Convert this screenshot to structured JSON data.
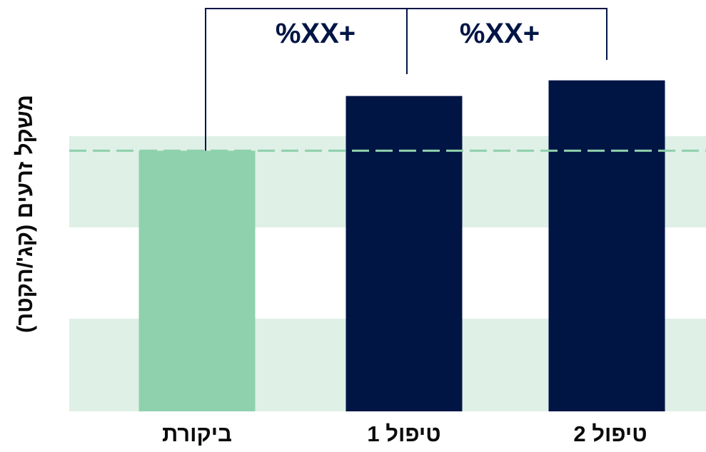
{
  "colors": {
    "background": "#ffffff",
    "band": "#dff0e7",
    "control_bar": "#8fd1ad",
    "treatment_bar": "#011545",
    "reference_line": "#8fd1ad",
    "bracket": "#011545",
    "text": "#0a0a0a",
    "annotation_text": "#011545"
  },
  "chart_data": {
    "type": "bar",
    "categories": [
      "ביקורת",
      "טיפול 1",
      "טיפול 2"
    ],
    "values": [
      100,
      121,
      127
    ],
    "value_units": "relative to control (control = 100)",
    "ylabel": "משקל זרעים (קג'/הקטר)",
    "xlabel": "",
    "ylim": [
      0,
      154
    ],
    "y_tick_labels": "none",
    "grid": "alternating horizontal shaded bands",
    "legend": "none",
    "reference_line": {
      "value": 100,
      "style": "dashed"
    },
    "annotations": [
      {
        "text": "%XX+",
        "from_category": "ביקורת",
        "to_category": "טיפול 1"
      },
      {
        "text": "%XX+",
        "from_category": "טיפול 1",
        "to_category": "טיפול 2"
      }
    ]
  }
}
